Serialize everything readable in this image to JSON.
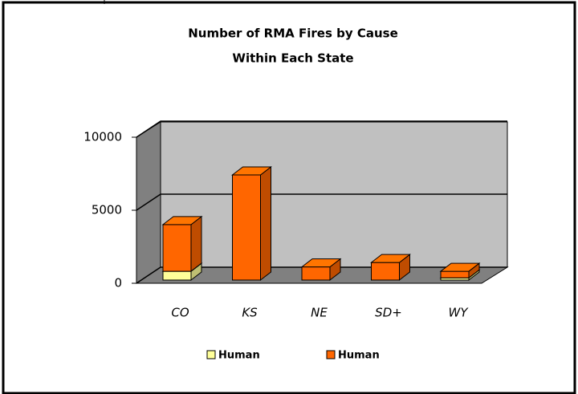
{
  "chart_data": {
    "type": "bar3d_stacked",
    "title": [
      "Number of RMA Fires by Cause",
      "Within Each State"
    ],
    "categories": [
      "CO",
      "KS",
      "NE",
      "SD+",
      "WY"
    ],
    "series": [
      {
        "name": "Human",
        "color": "#ffff99",
        "values": [
          600,
          0,
          0,
          0,
          150
        ]
      },
      {
        "name": "Human",
        "color": "#ff6600",
        "values": [
          3200,
          7200,
          900,
          1200,
          450
        ]
      }
    ],
    "ylim": [
      0,
      10000
    ],
    "yticks": [
      0,
      5000,
      10000
    ],
    "grid": true
  }
}
